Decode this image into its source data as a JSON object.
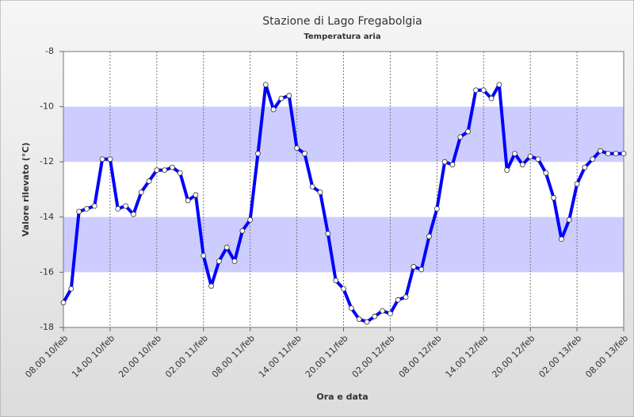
{
  "chart_data": {
    "type": "line",
    "title": "Stazione di Lago Fregabolgia",
    "subtitle": "Temperatura aria",
    "xlabel": "Ora e data",
    "ylabel": "Valore rilevato (°C)",
    "categories": [
      "08.00 10/feb",
      null,
      null,
      null,
      null,
      null,
      "14.00 10/feb",
      null,
      null,
      null,
      null,
      null,
      "20.00 10/feb",
      null,
      null,
      null,
      null,
      null,
      "02.00 11/feb",
      null,
      null,
      null,
      null,
      null,
      "08.00 11/feb",
      null,
      null,
      null,
      null,
      null,
      "14.00 11/feb",
      null,
      null,
      null,
      null,
      null,
      "20.00 11/feb",
      null,
      null,
      null,
      null,
      null,
      "02.00 12/feb",
      null,
      null,
      null,
      null,
      null,
      "08.00 12/feb",
      null,
      null,
      null,
      null,
      null,
      "14.00 12/feb",
      null,
      null,
      null,
      null,
      null,
      "20.00 12/feb",
      null,
      null,
      null,
      null,
      null,
      "02.00 13/feb",
      null,
      null,
      null,
      null,
      null,
      "08.00 13/feb"
    ],
    "series": [
      {
        "name": "Temperatura aria",
        "color": "#0000ff",
        "values": [
          -17.1,
          -16.6,
          -13.8,
          -13.7,
          -13.6,
          -11.9,
          -11.9,
          -13.7,
          -13.6,
          -13.9,
          -13.1,
          -12.7,
          -12.3,
          -12.3,
          -12.2,
          -12.4,
          -13.4,
          -13.2,
          -15.4,
          -16.5,
          -15.6,
          -15.1,
          -15.6,
          -14.5,
          -14.1,
          -11.7,
          -9.2,
          -10.1,
          -9.7,
          -9.6,
          -11.5,
          -11.7,
          -12.9,
          -13.1,
          -14.6,
          -16.3,
          -16.6,
          -17.3,
          -17.7,
          -17.8,
          -17.6,
          -17.4,
          -17.5,
          -17.0,
          -16.9,
          -15.8,
          -15.9,
          -14.7,
          -13.7,
          -12.0,
          -12.1,
          -11.1,
          -10.9,
          -9.4,
          -9.4,
          -9.7,
          -9.2,
          -12.3,
          -11.7,
          -12.1,
          -11.8,
          -11.9,
          -12.4,
          -13.3,
          -14.8,
          -14.1,
          -12.8,
          -12.2,
          -11.9,
          -11.6,
          -11.7,
          -11.7,
          -11.7
        ]
      }
    ],
    "ylim": [
      -18,
      -8
    ],
    "yticks": [
      -18,
      -16,
      -14,
      -12,
      -10,
      -8
    ],
    "bands": [
      [
        -12,
        -10
      ],
      [
        -16,
        -14
      ]
    ],
    "band_color": "#ccccff",
    "grid": true,
    "legend": false
  }
}
